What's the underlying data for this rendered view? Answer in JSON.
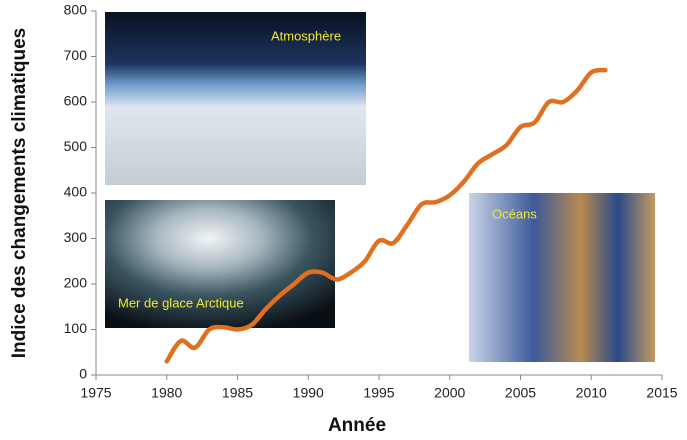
{
  "chart_data": {
    "type": "line",
    "x_label": "Année",
    "y_label": "Indice des changements climatiques",
    "annotations": [
      "Atmosphère",
      "Mer de glace Arctique",
      "Océans"
    ],
    "x": [
      1980,
      1981,
      1982,
      1983,
      1984,
      1985,
      1986,
      1987,
      1988,
      1989,
      1990,
      1991,
      1992,
      1993,
      1994,
      1995,
      1996,
      1997,
      1998,
      1999,
      2000,
      2001,
      2002,
      2003,
      2004,
      2005,
      2006,
      2007,
      2008,
      2009,
      2010,
      2011
    ],
    "series": [
      {
        "color": "#e07020",
        "values": [
          30,
          75,
          60,
          100,
          105,
          100,
          110,
          145,
          175,
          200,
          225,
          225,
          210,
          225,
          250,
          295,
          290,
          330,
          375,
          380,
          395,
          425,
          465,
          485,
          505,
          545,
          555,
          600,
          600,
          625,
          665,
          670
        ]
      }
    ],
    "xlim": [
      1975,
      2015
    ],
    "xticks": [
      1975,
      1980,
      1985,
      1990,
      1995,
      2000,
      2005,
      2010,
      2015
    ],
    "ylim": [
      0,
      800
    ],
    "yticks": [
      0,
      100,
      200,
      300,
      400,
      500,
      600,
      700,
      800
    ]
  }
}
